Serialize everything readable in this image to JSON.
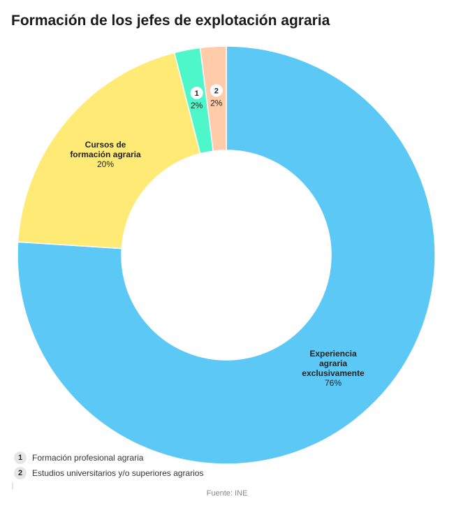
{
  "title": "Formación de los jefes de explotación agraria",
  "source": "Fuente: INE",
  "chart_data": {
    "type": "pie",
    "donut": true,
    "categories": [
      "Experiencia agraria exclusivamente",
      "Cursos de formación agraria",
      "Formación profesional agraria",
      "Estudios universitarios y/o superiores agrarios"
    ],
    "values": [
      76,
      20,
      2,
      2
    ],
    "value_labels": [
      "76%",
      "20%",
      "2%",
      "2%"
    ],
    "slice_labels": [
      [
        "Experiencia",
        "agraria",
        "exclusivamente"
      ],
      [
        "Cursos de",
        "formación agraria"
      ],
      [],
      []
    ],
    "markers": [
      "",
      "",
      "1",
      "2"
    ],
    "colors": [
      "#5bc8f5",
      "#ffea75",
      "#4df7c9",
      "#ffcba8"
    ],
    "legend_placement": "bottom-left"
  },
  "legend": [
    {
      "num": "1",
      "label": "Formación profesional agraria"
    },
    {
      "num": "2",
      "label": "Estudios universitarios y/o superiores agrarios"
    }
  ]
}
